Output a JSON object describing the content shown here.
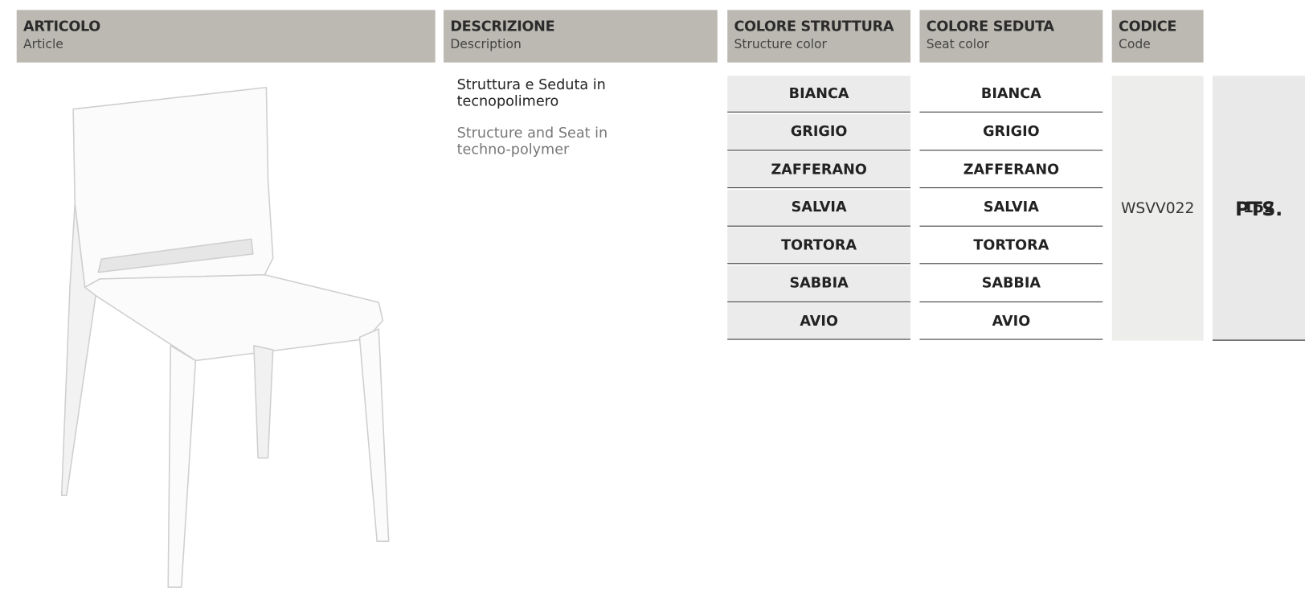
{
  "header": {
    "columns": [
      {
        "title": "ARTICOLO",
        "subtitle": "Article"
      },
      {
        "title": "DESCRIZIONE",
        "subtitle": "Description"
      },
      {
        "title": "COLORE STRUTTURA",
        "subtitle": "Structure color"
      },
      {
        "title": "COLORE SEDUTA",
        "subtitle": "Seat color"
      },
      {
        "title": "CODICE",
        "subtitle": "Code"
      },
      {
        "title": "PTS."
      }
    ]
  },
  "product": {
    "description_it": "Struttura e Seduta in tecnopolimero",
    "description_en": "Structure and Seat in techno-polymer",
    "structure_colors": [
      "BIANCA",
      "GRIGIO",
      "ZAFFERANO",
      "SALVIA",
      "TORTORA",
      "SABBIA",
      "AVIO"
    ],
    "seat_colors": [
      "BIANCA",
      "GRIGIO",
      "ZAFFERANO",
      "SALVIA",
      "TORTORA",
      "SABBIA",
      "AVIO"
    ],
    "code": "WSVV022",
    "pts": 152
  }
}
